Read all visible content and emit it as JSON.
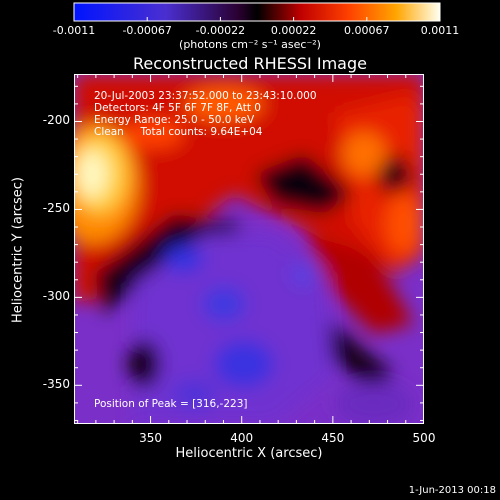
{
  "colorbar": {
    "ticks": [
      "-0.0011",
      "-0.00067",
      "-0.00022",
      "0.00022",
      "0.00067",
      "0.0011"
    ],
    "unit_label": "(photons cm⁻² s⁻¹ asec⁻²)"
  },
  "chart_data": {
    "type": "heatmap",
    "title": "Reconstructed RHESSI Image",
    "xlabel": "Heliocentric X (arcsec)",
    "ylabel": "Heliocentric Y (arcsec)",
    "xlim": [
      308,
      500
    ],
    "ylim": [
      -372,
      -173
    ],
    "x_ticks": [
      "350",
      "400",
      "450",
      "500"
    ],
    "x_tick_values": [
      350,
      400,
      450,
      500
    ],
    "y_ticks": [
      "-200",
      "-250",
      "-300",
      "-350"
    ],
    "y_tick_values": [
      -200,
      -250,
      -300,
      -350
    ],
    "value_range": [
      -0.0011,
      0.0011
    ],
    "peak": [
      316,
      -223
    ],
    "annotations": [
      "20-Jul-2003 23:37:52.000 to 23:43:10.000",
      "Detectors: 4F 5F 6F 7F 8F, Att 0",
      "Energy Range: 25.0 - 50.0 keV",
      "Clean     Total counts: 9.64E+04"
    ],
    "peak_label": "Position of Peak = [316,-223]"
  },
  "footer": {
    "date": "1-Jun-2013 00:18"
  }
}
